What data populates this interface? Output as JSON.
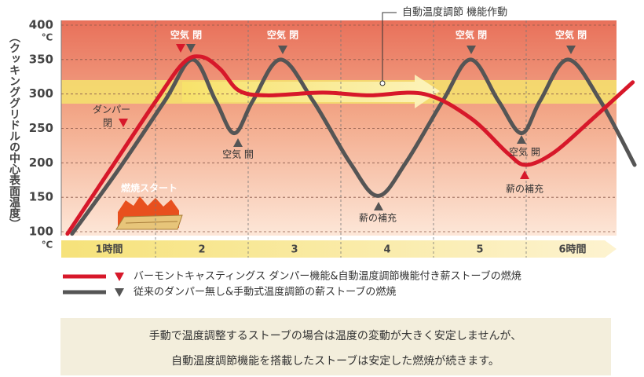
{
  "chart_data": {
    "type": "line",
    "y_label": "（クッキンググリドルの中心表面温度）",
    "y_unit": "℃",
    "ylim": [
      100,
      400
    ],
    "yticks": [
      100,
      150,
      200,
      250,
      300,
      350,
      400
    ],
    "xlim": [
      0,
      6
    ],
    "time_labels": [
      "1時間",
      "2",
      "3",
      "4",
      "5",
      "6時間"
    ],
    "series": [
      {
        "name": "バーモントキャスティングス ダンパー機能&自動温度調節機能付き薪ストーブの燃焼",
        "color": "#d7182a",
        "x": [
          0.05,
          0.5,
          1.0,
          1.3,
          1.5,
          1.7,
          1.9,
          2.2,
          2.8,
          3.3,
          3.9,
          4.4,
          4.8,
          5.0,
          5.3,
          5.7,
          6.15
        ],
        "values": [
          97,
          188,
          289,
          345,
          354,
          336,
          305,
          298,
          302,
          298,
          300,
          265,
          214,
          197,
          215,
          262,
          317
        ]
      },
      {
        "name": "従来のダンパー無し&手動式温度調節の薪ストーブの燃焼",
        "color": "#555555",
        "x": [
          0.1,
          0.6,
          1.1,
          1.4,
          1.65,
          1.85,
          2.05,
          2.35,
          2.7,
          3.1,
          3.4,
          3.7,
          4.1,
          4.4,
          4.7,
          4.95,
          5.15,
          5.45,
          5.8,
          6.17
        ],
        "values": [
          97,
          190,
          290,
          350,
          290,
          243,
          290,
          350,
          290,
          200,
          152,
          200,
          290,
          350,
          290,
          243,
          290,
          350,
          290,
          197
        ]
      }
    ],
    "annotations": [
      "空気 閉",
      "空気 閉",
      "空気 閉",
      "空気 閉",
      "空気 開",
      "薪の補充",
      "空気 開",
      "薪の補充",
      "ダンパー",
      "閉",
      "燃焼スタート"
    ],
    "callout": "自動温度調節 機能作動",
    "note": [
      "手動で温度調整するストーブの場合は温度の変動が大きく安定しませんが、",
      "自動温度調節機能を搭載したストーブは安定した燃焼が続きます。"
    ]
  }
}
